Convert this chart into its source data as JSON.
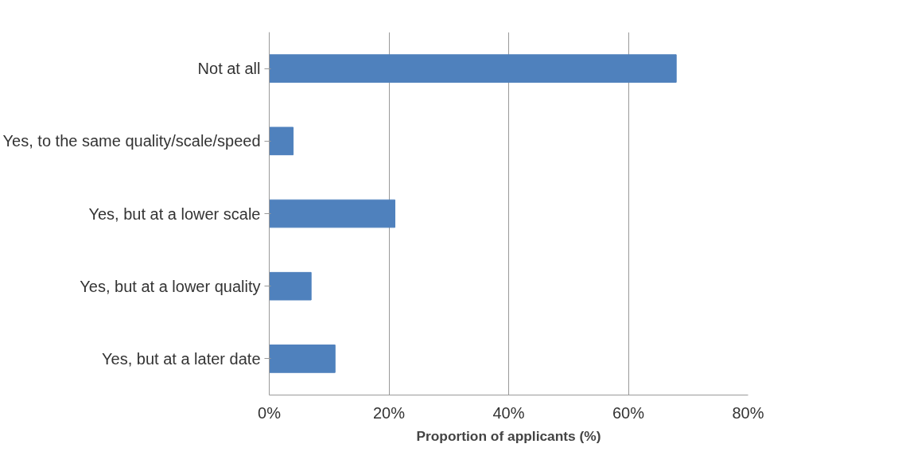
{
  "chart_data": {
    "type": "bar",
    "orientation": "horizontal",
    "xlabel": "Proportion of applicants (%)",
    "categories": [
      "Not at all",
      "Yes, to the same quality/scale/speed",
      "Yes, but at a lower scale",
      "Yes, but at a lower quality",
      "Yes, but at a later date"
    ],
    "values": [
      68,
      4,
      21,
      7,
      11
    ],
    "color": "#4f81bd",
    "xlim": [
      0,
      80
    ],
    "xticks": [
      {
        "value": 0,
        "label": "0%"
      },
      {
        "value": 20,
        "label": "20%"
      },
      {
        "value": 40,
        "label": "40%"
      },
      {
        "value": 60,
        "label": "60%"
      },
      {
        "value": 80,
        "label": "80%"
      }
    ],
    "grid": "x"
  }
}
